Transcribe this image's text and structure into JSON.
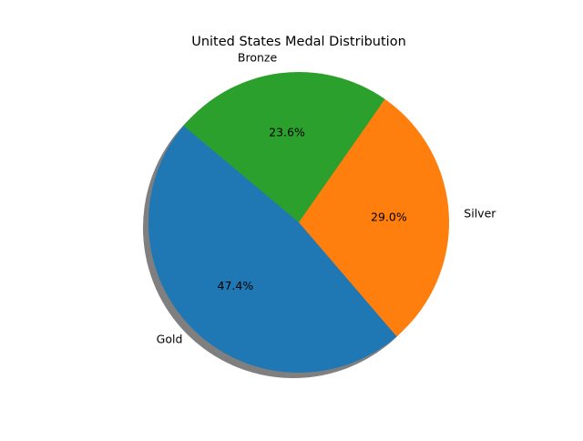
{
  "chart_data": {
    "type": "pie",
    "title": "United States Medal Distribution",
    "categories": [
      "Gold",
      "Silver",
      "Bronze"
    ],
    "values": [
      47.4,
      29.0,
      23.6
    ],
    "value_labels": [
      "47.4%",
      "29.0%",
      "23.6%"
    ],
    "colors": [
      "#1f77b4",
      "#ff7f0e",
      "#2ca02c"
    ],
    "start_angle_deg": 140,
    "direction": "counterclockwise",
    "shadow": true
  }
}
